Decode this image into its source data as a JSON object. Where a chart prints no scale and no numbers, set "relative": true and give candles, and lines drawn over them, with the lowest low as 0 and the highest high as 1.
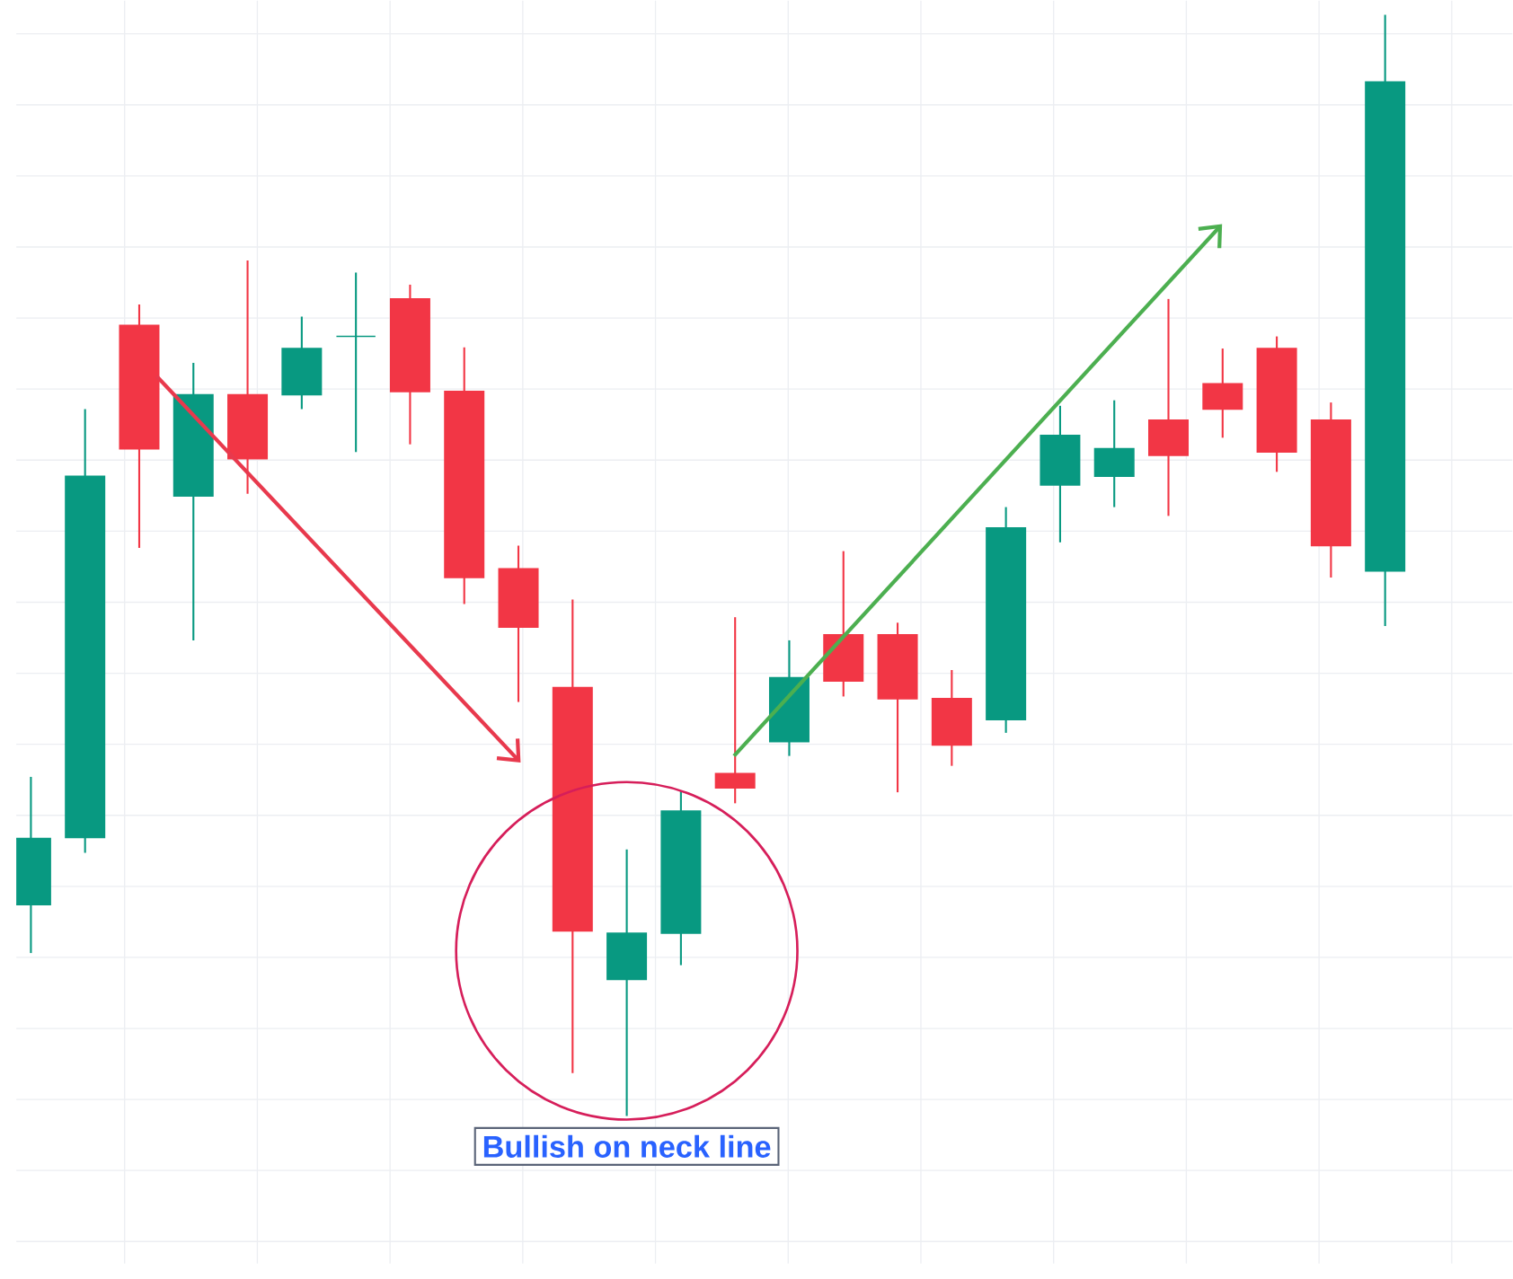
{
  "chart_data": {
    "type": "candlestick",
    "relative": true,
    "grid": true,
    "categories": [
      null,
      null,
      null,
      null,
      null,
      null,
      null,
      null,
      null,
      null,
      null,
      null,
      null,
      null,
      null,
      null,
      null,
      null,
      null,
      null,
      null,
      null,
      null,
      null,
      null,
      null
    ],
    "ohlc": [
      [
        0.192,
        0.308,
        0.148,
        0.252
      ],
      [
        0.253,
        0.642,
        0.239,
        0.581
      ],
      [
        0.718,
        0.737,
        0.516,
        0.606
      ],
      [
        0.563,
        0.684,
        0.432,
        0.655
      ],
      [
        0.655,
        0.777,
        0.565,
        0.597
      ],
      [
        0.655,
        0.726,
        0.642,
        0.697
      ],
      [
        0.708,
        0.766,
        0.603,
        0.708
      ],
      [
        0.742,
        0.755,
        0.61,
        0.658
      ],
      [
        0.658,
        0.698,
        0.465,
        0.489
      ],
      [
        0.497,
        0.518,
        0.376,
        0.444
      ],
      [
        0.389,
        0.469,
        0.039,
        0.168
      ],
      [
        0.124,
        0.242,
        0,
        0.166
      ],
      [
        0.166,
        0.295,
        0.137,
        0.277
      ],
      [
        0.311,
        0.453,
        0.284,
        0.298
      ],
      [
        0.34,
        0.432,
        0.327,
        0.398
      ],
      [
        0.437,
        0.513,
        0.381,
        0.395
      ],
      [
        0.437,
        0.448,
        0.294,
        0.379
      ],
      [
        0.379,
        0.405,
        0.318,
        0.337
      ],
      [
        0.36,
        0.553,
        0.348,
        0.534
      ],
      [
        0.573,
        0.645,
        0.521,
        0.618
      ],
      [
        0.581,
        0.65,
        0.553,
        0.606
      ],
      [
        0.632,
        0.742,
        0.545,
        0.6
      ],
      [
        0.665,
        0.697,
        0.616,
        0.642
      ],
      [
        0.697,
        0.708,
        0.585,
        0.603
      ],
      [
        0.632,
        0.648,
        0.489,
        0.518
      ],
      [
        0.495,
        1.0,
        0.445,
        0.939
      ]
    ],
    "colors": [
      "#089981",
      "#089981",
      "#f23645",
      "#089981",
      "#f23645",
      "#089981",
      "#089981",
      "#f23645",
      "#f23645",
      "#f23645",
      "#f23645",
      "#089981",
      "#089981",
      "#f23645",
      "#089981",
      "#f23645",
      "#f23645",
      "#f23645",
      "#089981",
      "#089981",
      "#089981",
      "#f23645",
      "#f23645",
      "#f23645",
      "#f23645",
      "#089981"
    ],
    "annotations": [
      "Bullish on neck line"
    ]
  }
}
